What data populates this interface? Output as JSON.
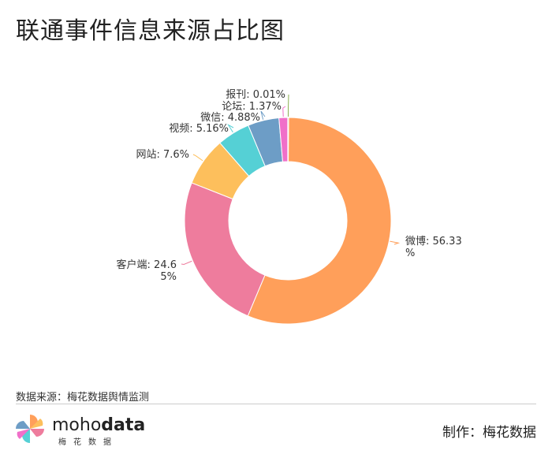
{
  "title": "联通事件信息来源占比图",
  "source": "数据来源：梅花数据舆情监测",
  "credit": "制作：梅花数据",
  "brand": {
    "pre": "moho",
    "bold": "data",
    "sub": "梅花数据"
  },
  "chart_data": {
    "type": "pie",
    "title": "联通事件信息来源占比图",
    "donut": true,
    "slices": [
      {
        "name": "微博",
        "value": 56.33,
        "label": "微博: 56.33%",
        "color": "#FF9F5A"
      },
      {
        "name": "客户端",
        "value": 24.65,
        "label": "客户端: 24.65%",
        "color": "#EE7C9D"
      },
      {
        "name": "网站",
        "value": 7.6,
        "label": "网站: 7.6%",
        "color": "#FDBF5C"
      },
      {
        "name": "视频",
        "value": 5.16,
        "label": "视频: 5.16%",
        "color": "#55D0D5"
      },
      {
        "name": "微信",
        "value": 4.88,
        "label": "微信: 4.88%",
        "color": "#6D9DC6"
      },
      {
        "name": "论坛",
        "value": 1.37,
        "label": "论坛: 1.37%",
        "color": "#F06FC9"
      },
      {
        "name": "报刊",
        "value": 0.01,
        "label": "报刊: 0.01%",
        "color": "#8BAF52"
      }
    ]
  }
}
